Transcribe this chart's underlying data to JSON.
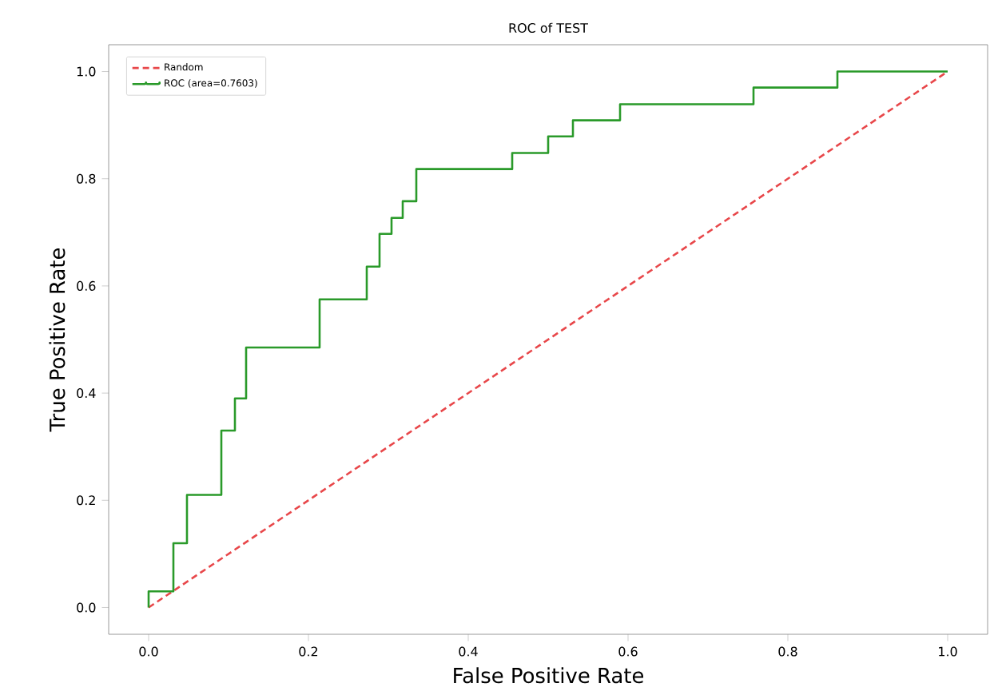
{
  "chart_data": {
    "type": "line",
    "title": "ROC of TEST",
    "xlabel": "False Positive Rate",
    "ylabel": "True Positive Rate",
    "xlim": [
      -0.05,
      1.05
    ],
    "ylim": [
      -0.05,
      1.05
    ],
    "xticks": [
      {
        "value": 0,
        "label": "0.0"
      },
      0.2,
      0.4,
      0.6,
      0.8,
      {
        "value": 1,
        "label": "1.0"
      }
    ],
    "yticks": [
      {
        "value": 0,
        "label": "0.0"
      },
      0.2,
      0.4,
      0.6,
      0.8,
      {
        "value": 1,
        "label": "1.0"
      }
    ],
    "legend": "top left",
    "grid": false,
    "series": [
      {
        "name": "Random",
        "line_style": "dashed",
        "color": "#e8474a",
        "x": [
          0,
          1
        ],
        "values": [
          0,
          1
        ]
      },
      {
        "name": "ROC (area=0.7603)",
        "type": "step",
        "line_style": "solid",
        "color": "#2a9a2a",
        "x": [
          0,
          0,
          0.031,
          0.048,
          0.091,
          0.108,
          0.122,
          0.214,
          0.273,
          0.289,
          0.304,
          0.318,
          0.335,
          0.455,
          0.5,
          0.531,
          0.59,
          0.757,
          0.862,
          1
        ],
        "values": [
          0,
          0.03,
          0.12,
          0.21,
          0.33,
          0.39,
          0.485,
          0.575,
          0.636,
          0.697,
          0.727,
          0.758,
          0.818,
          0.848,
          0.879,
          0.909,
          0.939,
          0.97,
          1.0,
          1.0
        ]
      }
    ]
  }
}
